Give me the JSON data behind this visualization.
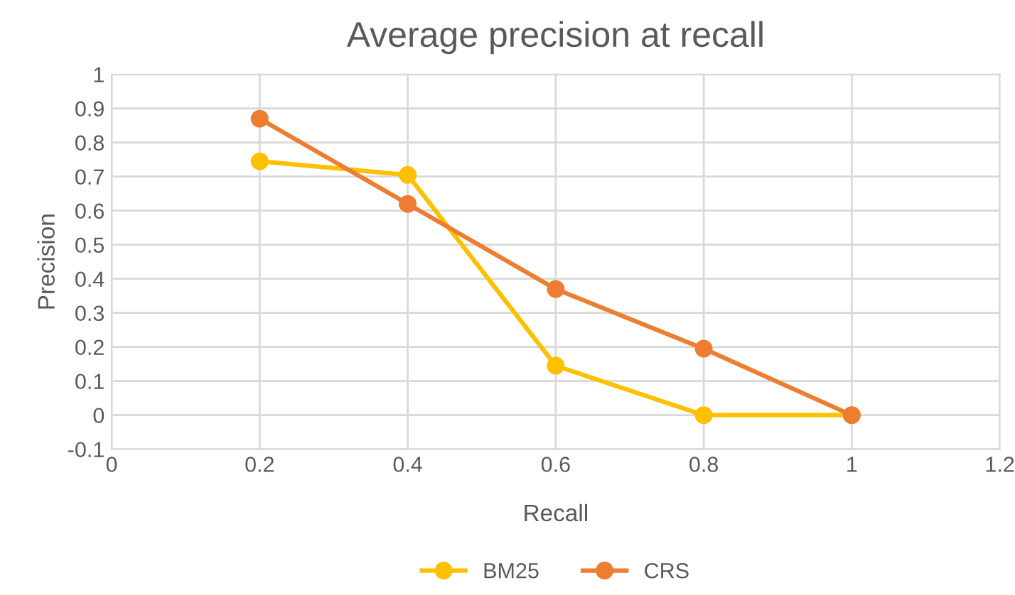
{
  "chart_data": {
    "type": "line",
    "title": "Average precision at recall",
    "xlabel": "Recall",
    "ylabel": "Precision",
    "x": [
      0.2,
      0.4,
      0.6,
      0.8,
      1
    ],
    "series": [
      {
        "name": "BM25",
        "color": "#ffc000",
        "values": [
          0.745,
          0.705,
          0.145,
          0.0,
          0.0
        ]
      },
      {
        "name": "CRS",
        "color": "#ed7d31",
        "values": [
          0.87,
          0.62,
          0.37,
          0.195,
          0.0
        ]
      }
    ],
    "xlim": [
      0,
      1.2
    ],
    "xticks": [
      0,
      0.2,
      0.4,
      0.6,
      0.8,
      1,
      1.2
    ],
    "ylim": [
      -0.1,
      1
    ],
    "yticks": [
      -0.1,
      0,
      0.1,
      0.2,
      0.3,
      0.4,
      0.5,
      0.6,
      0.7,
      0.8,
      0.9,
      1
    ],
    "grid": true,
    "legend": "bottom",
    "marker": "circle",
    "line_style": "solid"
  }
}
